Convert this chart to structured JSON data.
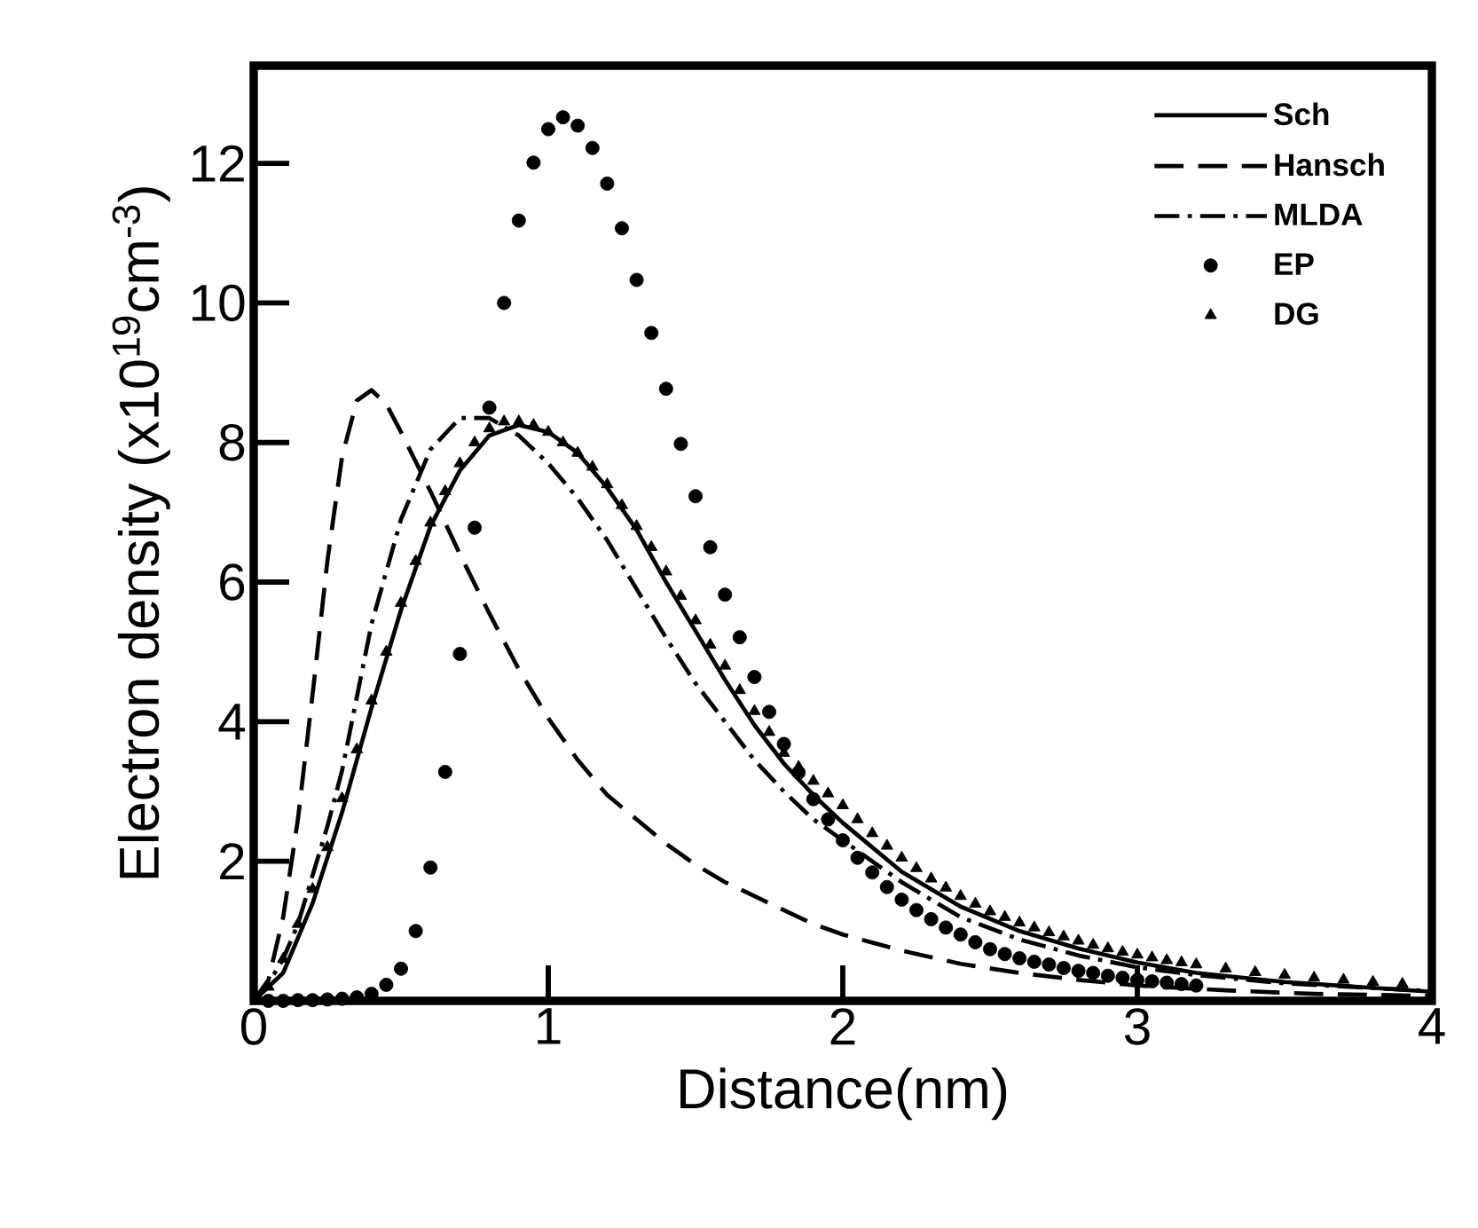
{
  "chart_data": {
    "type": "line",
    "xlabel": "Distance(nm)",
    "ylabel": "Electron density (x10$^{19}$cm$^{-3}$)",
    "xlim": [
      0,
      4
    ],
    "ylim": [
      0,
      13.4
    ],
    "xticks": [
      0,
      1,
      2,
      3,
      4
    ],
    "yticks": [
      2,
      4,
      6,
      8,
      10,
      12
    ],
    "legend": "top right",
    "grid": false,
    "series": [
      {
        "name": "Sch",
        "line_style": "solid",
        "marker": "none",
        "color": "#000000",
        "x": [
          0,
          0.1,
          0.2,
          0.3,
          0.4,
          0.5,
          0.6,
          0.7,
          0.8,
          0.9,
          1.0,
          1.1,
          1.2,
          1.3,
          1.4,
          1.5,
          1.6,
          1.7,
          1.8,
          1.9,
          2.0,
          2.2,
          2.4,
          2.6,
          2.8,
          3.0,
          3.2,
          3.5,
          4.0
        ],
        "values": [
          0,
          0.4,
          1.4,
          2.7,
          4.2,
          5.6,
          6.8,
          7.6,
          8.1,
          8.25,
          8.15,
          7.85,
          7.35,
          6.75,
          6.0,
          5.3,
          4.6,
          3.95,
          3.4,
          2.95,
          2.55,
          1.85,
          1.35,
          1.0,
          0.75,
          0.55,
          0.4,
          0.27,
          0.13
        ]
      },
      {
        "name": "Hansch",
        "line_style": "dashed",
        "marker": "none",
        "color": "#000000",
        "x": [
          0,
          0.05,
          0.1,
          0.15,
          0.2,
          0.25,
          0.3,
          0.35,
          0.4,
          0.45,
          0.5,
          0.6,
          0.7,
          0.8,
          0.9,
          1.0,
          1.1,
          1.2,
          1.3,
          1.4,
          1.5,
          1.6,
          1.7,
          1.8,
          1.9,
          2.0,
          2.2,
          2.4,
          2.6,
          2.8,
          3.0,
          3.3,
          3.6,
          4.0
        ],
        "values": [
          0,
          0.3,
          1.2,
          2.6,
          4.4,
          6.3,
          7.8,
          8.6,
          8.75,
          8.55,
          8.15,
          7.3,
          6.4,
          5.55,
          4.75,
          4.05,
          3.45,
          2.95,
          2.6,
          2.25,
          1.95,
          1.7,
          1.5,
          1.3,
          1.1,
          0.95,
          0.72,
          0.53,
          0.4,
          0.3,
          0.22,
          0.15,
          0.1,
          0.07
        ]
      },
      {
        "name": "MLDA",
        "line_style": "dashdot",
        "marker": "none",
        "color": "#000000",
        "x": [
          0,
          0.05,
          0.1,
          0.15,
          0.2,
          0.25,
          0.3,
          0.4,
          0.5,
          0.6,
          0.7,
          0.8,
          0.9,
          1.0,
          1.1,
          1.2,
          1.3,
          1.4,
          1.5,
          1.6,
          1.7,
          1.8,
          1.9,
          2.0,
          2.2,
          2.4,
          2.6,
          2.8,
          3.0,
          3.2,
          3.5,
          4.0
        ],
        "values": [
          0,
          0.25,
          0.6,
          1.1,
          1.8,
          2.5,
          3.3,
          5.4,
          6.9,
          7.9,
          8.35,
          8.35,
          8.1,
          7.7,
          7.2,
          6.6,
          5.9,
          5.2,
          4.55,
          4.0,
          3.45,
          3.0,
          2.6,
          2.3,
          1.7,
          1.2,
          0.88,
          0.65,
          0.48,
          0.37,
          0.25,
          0.14
        ]
      },
      {
        "name": "EP",
        "type": "scatter",
        "marker": "circle",
        "color": "#000000",
        "x": [
          0.05,
          0.1,
          0.15,
          0.2,
          0.25,
          0.3,
          0.35,
          0.4,
          0.45,
          0.5,
          0.55,
          0.6,
          0.65,
          0.7,
          0.75,
          0.8,
          0.85,
          0.9,
          0.95,
          1.0,
          1.05,
          1.1,
          1.15,
          1.2,
          1.25,
          1.3,
          1.35,
          1.4,
          1.45,
          1.5,
          1.55,
          1.6,
          1.65,
          1.7,
          1.75,
          1.8,
          1.85,
          1.9,
          1.95,
          2.0,
          2.05,
          2.1,
          2.15,
          2.2,
          2.25,
          2.3,
          2.35,
          2.4,
          2.45,
          2.5,
          2.55,
          2.6,
          2.65,
          2.7,
          2.75,
          2.8,
          2.85,
          2.9,
          2.95,
          3.0,
          3.05,
          3.1,
          3.15,
          3.2
        ],
        "values": [
          0,
          0,
          0.01,
          0.01,
          0.02,
          0.03,
          0.05,
          0.1,
          0.23,
          0.46,
          1.0,
          1.91,
          3.28,
          4.97,
          6.78,
          8.5,
          10.0,
          11.18,
          12.01,
          12.49,
          12.66,
          12.54,
          12.22,
          11.71,
          11.07,
          10.33,
          9.57,
          8.77,
          7.98,
          7.23,
          6.5,
          5.82,
          5.21,
          4.64,
          4.14,
          3.68,
          3.27,
          2.89,
          2.6,
          2.3,
          2.05,
          1.84,
          1.63,
          1.45,
          1.3,
          1.17,
          1.05,
          0.95,
          0.84,
          0.74,
          0.67,
          0.61,
          0.56,
          0.52,
          0.47,
          0.43,
          0.4,
          0.36,
          0.33,
          0.3,
          0.28,
          0.26,
          0.24,
          0.22
        ]
      },
      {
        "name": "DG",
        "type": "scatter",
        "marker": "triangle",
        "color": "#000000",
        "x": [
          0.05,
          0.1,
          0.15,
          0.2,
          0.25,
          0.3,
          0.35,
          0.4,
          0.45,
          0.5,
          0.55,
          0.6,
          0.65,
          0.7,
          0.75,
          0.8,
          0.85,
          0.9,
          0.95,
          1.0,
          1.05,
          1.1,
          1.15,
          1.2,
          1.25,
          1.3,
          1.35,
          1.4,
          1.45,
          1.5,
          1.55,
          1.6,
          1.65,
          1.7,
          1.75,
          1.8,
          1.85,
          1.9,
          1.95,
          2.0,
          2.05,
          2.1,
          2.15,
          2.2,
          2.25,
          2.3,
          2.35,
          2.4,
          2.45,
          2.5,
          2.55,
          2.6,
          2.65,
          2.7,
          2.75,
          2.8,
          2.85,
          2.9,
          2.95,
          3.0,
          3.05,
          3.1,
          3.15,
          3.2,
          3.3,
          3.4,
          3.5,
          3.6,
          3.7,
          3.8,
          3.9
        ],
        "values": [
          0.2,
          0.6,
          1.1,
          1.6,
          2.2,
          2.9,
          3.6,
          4.3,
          5.0,
          5.7,
          6.3,
          6.85,
          7.3,
          7.7,
          8.0,
          8.2,
          8.3,
          8.3,
          8.25,
          8.15,
          8.0,
          7.85,
          7.65,
          7.4,
          7.1,
          6.8,
          6.5,
          6.15,
          5.8,
          5.45,
          5.1,
          4.8,
          4.45,
          4.15,
          3.85,
          3.55,
          3.35,
          3.15,
          2.97,
          2.8,
          2.6,
          2.4,
          2.22,
          2.05,
          1.9,
          1.75,
          1.62,
          1.5,
          1.39,
          1.28,
          1.2,
          1.12,
          1.05,
          0.98,
          0.92,
          0.86,
          0.8,
          0.75,
          0.7,
          0.66,
          0.62,
          0.58,
          0.55,
          0.52,
          0.46,
          0.41,
          0.37,
          0.33,
          0.3,
          0.27,
          0.24
        ]
      }
    ]
  }
}
